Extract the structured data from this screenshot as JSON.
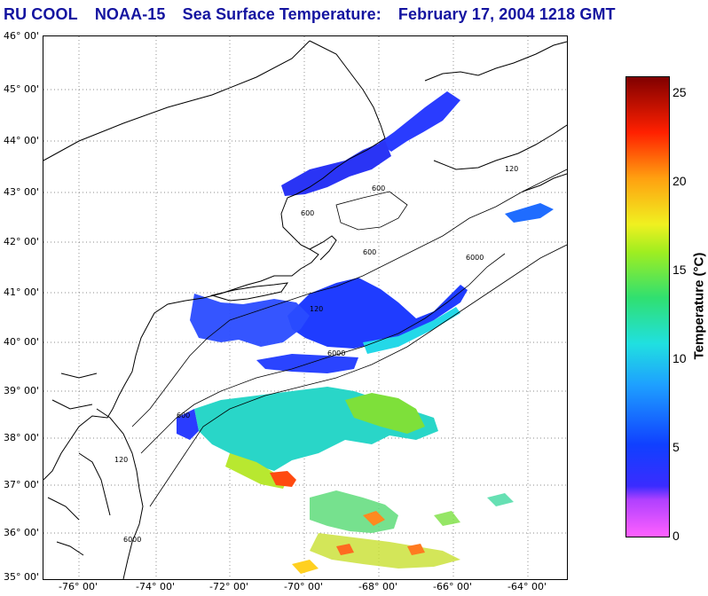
{
  "title": {
    "org": "RU COOL",
    "satellite": "NOAA-15",
    "product": "Sea Surface Temperature:",
    "datetime": "February 17, 2004 1218 GMT"
  },
  "lat_labels": [
    "46° 00'",
    "45° 00'",
    "44° 00'",
    "43° 00'",
    "42° 00'",
    "41° 00'",
    "40° 00'",
    "39° 00'",
    "38° 00'",
    "37° 00'",
    "36° 00'",
    "35° 00'"
  ],
  "lon_labels": [
    "-76° 00'",
    "-74° 00'",
    "-72° 00'",
    "-70° 00'",
    "-68° 00'",
    "-66° 00'",
    "-64° 00'"
  ],
  "colorbar": {
    "label": "Temperature (°C)",
    "ticks": [
      "25",
      "20",
      "15",
      "10",
      "5",
      "0"
    ],
    "range": [
      0,
      26
    ]
  },
  "isobaths": [
    "600",
    "120",
    "6000"
  ],
  "colors": {
    "title": "#1414a0",
    "land": "#ffffff",
    "cold": "#1e2cff",
    "warm": "#ff3a00"
  }
}
